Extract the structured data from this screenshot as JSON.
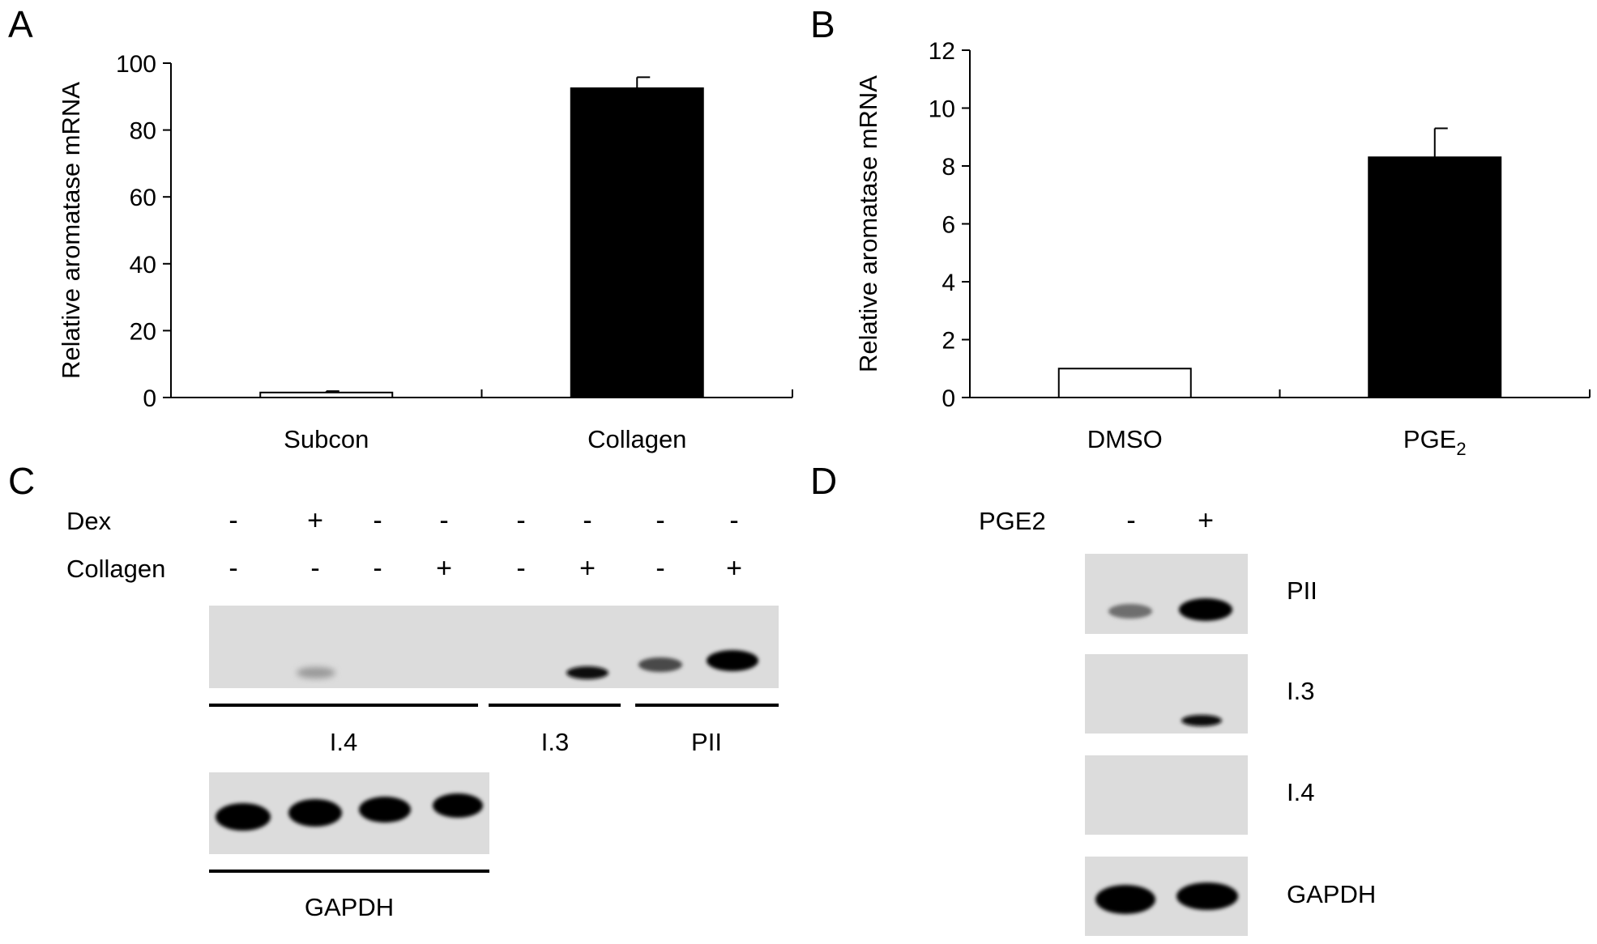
{
  "panels": {
    "a": {
      "letter": "A"
    },
    "b": {
      "letter": "B"
    },
    "c": {
      "letter": "C",
      "row_labels": [
        "Dex",
        "Collagen"
      ],
      "dex_signs": [
        "-",
        "+",
        "-",
        "-",
        "-",
        "-",
        "-",
        "-"
      ],
      "collagen_signs": [
        "-",
        "-",
        "-",
        "+",
        "-",
        "+",
        "-",
        "+"
      ],
      "group_labels": [
        "I.4",
        "I.3",
        "PII"
      ],
      "gapdh_label": "GAPDH"
    },
    "d": {
      "letter": "D",
      "treatment_label": "PGE2",
      "signs": [
        "-",
        "+"
      ],
      "gel_labels": [
        "PII",
        "I.3",
        "I.4",
        "GAPDH"
      ]
    }
  },
  "chart_data": [
    {
      "type": "bar",
      "categories": [
        "Subcon",
        "Collagen"
      ],
      "values": [
        1.5,
        92.5
      ],
      "errors": [
        0.4,
        3.3
      ],
      "bar_colors": [
        "#ffffff",
        "#000000"
      ],
      "ylabel": "Relative aromatase mRNA",
      "ylim": [
        0,
        100
      ],
      "yticks": [
        0,
        20,
        40,
        60,
        80,
        100
      ],
      "grid": false
    },
    {
      "type": "bar",
      "categories": [
        "DMSO",
        "PGE2"
      ],
      "values": [
        1.0,
        8.3
      ],
      "errors": [
        0,
        1.0
      ],
      "bar_colors": [
        "#ffffff",
        "#000000"
      ],
      "ylabel": "Relative aromatase mRNA",
      "ylim": [
        0,
        12
      ],
      "yticks": [
        0,
        2,
        4,
        6,
        8,
        10,
        12
      ],
      "grid": false
    }
  ]
}
